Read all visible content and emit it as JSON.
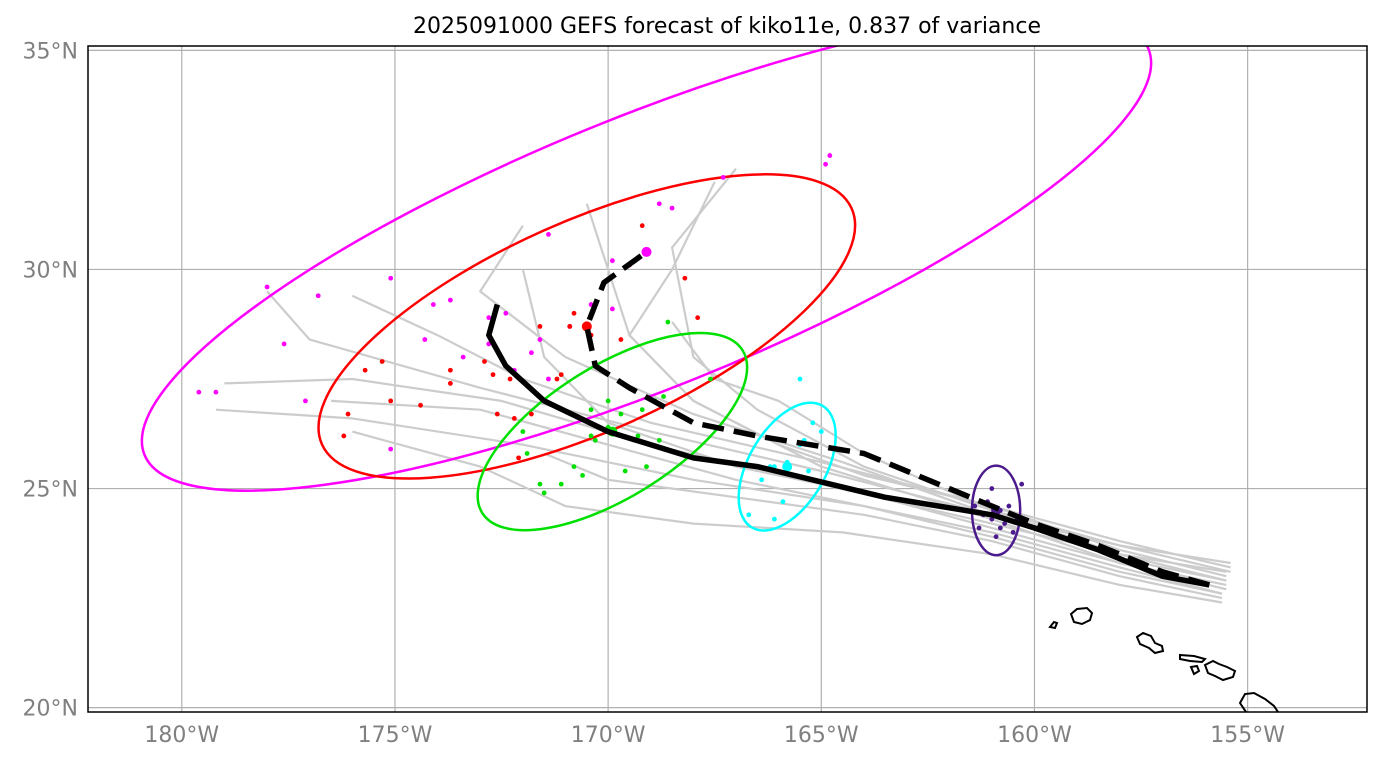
{
  "map": {
    "title": "2025091000 GEFS forecast of kiko11e, 0.837 of variance",
    "lon_range": [
      -182.2,
      -152.2
    ],
    "lat_range": [
      19.9,
      35.1
    ],
    "x_ticks": [
      {
        "lon": -180,
        "label": "180°W"
      },
      {
        "lon": -175,
        "label": "175°W"
      },
      {
        "lon": -170,
        "label": "170°W"
      },
      {
        "lon": -165,
        "label": "165°W"
      },
      {
        "lon": -160,
        "label": "160°W"
      },
      {
        "lon": -155,
        "label": "155°W"
      }
    ],
    "y_ticks": [
      {
        "lat": 35,
        "label": "35°N"
      },
      {
        "lat": 30,
        "label": "30°N"
      },
      {
        "lat": 25,
        "label": "25°N"
      },
      {
        "lat": 20,
        "label": "20°N"
      }
    ],
    "grid": true,
    "colors": {
      "grid": "#b0b0b0",
      "member_track": "#cccccc",
      "mean_track": "#000000",
      "coast": "#000000",
      "cluster_1": "#ff00ff",
      "cluster_2": "#ff0000",
      "cluster_3": "#00e000",
      "cluster_4": "#00ffff",
      "cluster_5": "#4b1a8c"
    }
  },
  "chart_data": {
    "type": "map",
    "member_tracks": [
      [
        [
          -155.5,
          23.1
        ],
        [
          -158,
          23.5
        ],
        [
          -161,
          24.2
        ],
        [
          -165,
          25.1
        ],
        [
          -169,
          26
        ],
        [
          -172.5,
          27
        ],
        [
          -176,
          27.5
        ],
        [
          -179,
          27.4
        ]
      ],
      [
        [
          -155.5,
          22.9
        ],
        [
          -158,
          23.4
        ],
        [
          -161,
          24.4
        ],
        [
          -165,
          25.4
        ],
        [
          -169,
          26.3
        ],
        [
          -173,
          27.3
        ],
        [
          -177,
          28.4
        ],
        [
          -178,
          29.5
        ]
      ],
      [
        [
          -155.6,
          22.6
        ],
        [
          -158,
          23.2
        ],
        [
          -161,
          24
        ],
        [
          -164,
          24.6
        ],
        [
          -168,
          25.2
        ],
        [
          -172,
          26
        ],
        [
          -176,
          26.6
        ],
        [
          -179.2,
          26.8
        ]
      ],
      [
        [
          -155.4,
          23.3
        ],
        [
          -158,
          23.7
        ],
        [
          -161,
          24.4
        ],
        [
          -164.5,
          25.6
        ],
        [
          -168,
          26.7
        ],
        [
          -171,
          28
        ],
        [
          -173,
          29.5
        ],
        [
          -172,
          31
        ]
      ],
      [
        [
          -155.6,
          22.4
        ],
        [
          -158,
          22.8
        ],
        [
          -161,
          23.5
        ],
        [
          -164.5,
          24
        ],
        [
          -168,
          24.2
        ],
        [
          -171,
          24.6
        ],
        [
          -173,
          25.5
        ],
        [
          -176,
          26.3
        ]
      ],
      [
        [
          -155.5,
          22.7
        ],
        [
          -158,
          23.3
        ],
        [
          -161,
          24.3
        ],
        [
          -165,
          25.5
        ],
        [
          -168,
          27
        ],
        [
          -169.5,
          28.5
        ],
        [
          -170,
          30
        ],
        [
          -170.5,
          31.5
        ]
      ],
      [
        [
          -155.4,
          23.2
        ],
        [
          -158,
          23.8
        ],
        [
          -161,
          24.6
        ],
        [
          -164,
          25.3
        ],
        [
          -166,
          26
        ],
        [
          -168,
          27
        ],
        [
          -169.5,
          28.5
        ],
        [
          -168.5,
          30
        ],
        [
          -167.5,
          32
        ]
      ],
      [
        [
          -155.5,
          22.9
        ],
        [
          -158,
          23.5
        ],
        [
          -161,
          24.5
        ],
        [
          -164,
          25.8
        ],
        [
          -166,
          27
        ],
        [
          -167.5,
          27.5
        ],
        [
          -168.5,
          28.8
        ]
      ],
      [
        [
          -155.5,
          23
        ],
        [
          -158,
          23.6
        ],
        [
          -161,
          24.6
        ],
        [
          -165,
          25.6
        ],
        [
          -169,
          26.5
        ],
        [
          -172,
          27.5
        ],
        [
          -174,
          28.5
        ],
        [
          -176,
          29.4
        ]
      ],
      [
        [
          -155.6,
          22.5
        ],
        [
          -158,
          23
        ],
        [
          -161,
          23.8
        ],
        [
          -164,
          24.4
        ],
        [
          -167,
          24.8
        ],
        [
          -170,
          25.2
        ],
        [
          -171.5,
          25.8
        ]
      ],
      [
        [
          -155.5,
          22.8
        ],
        [
          -158,
          23.3
        ],
        [
          -161,
          24.1
        ],
        [
          -164,
          24.9
        ],
        [
          -167,
          25.5
        ],
        [
          -170,
          26.5
        ],
        [
          -171.5,
          28
        ],
        [
          -172,
          30
        ]
      ],
      [
        [
          -155.4,
          23.1
        ],
        [
          -158,
          23.7
        ],
        [
          -161,
          24.5
        ],
        [
          -164,
          25.5
        ],
        [
          -166.5,
          26.8
        ],
        [
          -168,
          28
        ],
        [
          -168.5,
          30.5
        ],
        [
          -167,
          32.3
        ]
      ],
      [
        [
          -155.6,
          22.6
        ],
        [
          -158,
          23.1
        ],
        [
          -161,
          23.9
        ],
        [
          -164,
          24.6
        ],
        [
          -167,
          25.2
        ],
        [
          -170,
          26
        ],
        [
          -173,
          26.8
        ],
        [
          -176.5,
          27
        ]
      ]
    ],
    "mean_track_solid": [
      [
        -155.9,
        22.8
      ],
      [
        -157,
        23
      ],
      [
        -158.5,
        23.6
      ],
      [
        -160,
        24.1
      ],
      [
        -161,
        24.4
      ],
      [
        -163.5,
        24.8
      ],
      [
        -166.5,
        25.5
      ],
      [
        -168,
        25.7
      ],
      [
        -170,
        26.3
      ],
      [
        -171.5,
        27
      ],
      [
        -172.4,
        27.8
      ],
      [
        -172.8,
        28.5
      ],
      [
        -172.6,
        29.2
      ]
    ],
    "mean_track_dashed": [
      [
        -155.9,
        22.8
      ],
      [
        -157,
        23.1
      ],
      [
        -158.5,
        23.7
      ],
      [
        -160,
        24.2
      ],
      [
        -161.5,
        24.8
      ],
      [
        -164,
        25.8
      ],
      [
        -166.5,
        26.2
      ],
      [
        -168,
        26.5
      ],
      [
        -169.5,
        27.3
      ],
      [
        -170.3,
        27.8
      ],
      [
        -170.5,
        28.7
      ],
      [
        -170.1,
        29.7
      ],
      [
        -169.1,
        30.4
      ]
    ],
    "clusters": [
      {
        "color_key": "cluster_1",
        "center": [
          -169.1,
          30.4
        ],
        "rx": 12.7,
        "ry": 3.1,
        "angle": 22,
        "points": [
          [
            -179.6,
            27.2
          ],
          [
            -179.2,
            27.2
          ],
          [
            -178,
            29.6
          ],
          [
            -177.6,
            28.3
          ],
          [
            -177.1,
            27
          ],
          [
            -176.8,
            29.4
          ],
          [
            -175.1,
            29.8
          ],
          [
            -175.1,
            25.9
          ],
          [
            -174.3,
            28.4
          ],
          [
            -174.1,
            29.2
          ],
          [
            -173.7,
            29.3
          ],
          [
            -173.4,
            28
          ],
          [
            -172.8,
            28.9
          ],
          [
            -172.8,
            28.3
          ],
          [
            -172.4,
            29
          ],
          [
            -172.2,
            27.7
          ],
          [
            -171.8,
            28.1
          ],
          [
            -171.6,
            28.4
          ],
          [
            -171.4,
            27.5
          ],
          [
            -171.4,
            30.8
          ],
          [
            -170.9,
            28.7
          ],
          [
            -170.4,
            29.2
          ],
          [
            -169.9,
            29.1
          ],
          [
            -169.9,
            30.2
          ],
          [
            -168.8,
            31.5
          ],
          [
            -168.5,
            31.4
          ],
          [
            -167.3,
            32.1
          ],
          [
            -164.8,
            32.6
          ],
          [
            -164.9,
            32.4
          ]
        ]
      },
      {
        "color_key": "cluster_2",
        "center": [
          -170.5,
          28.7
        ],
        "rx": 6.8,
        "ry": 2.4,
        "angle": 24,
        "points": [
          [
            -176.2,
            26.2
          ],
          [
            -176.1,
            26.7
          ],
          [
            -175.7,
            27.7
          ],
          [
            -175.3,
            27.9
          ],
          [
            -175.1,
            27
          ],
          [
            -174.4,
            26.9
          ],
          [
            -173.7,
            27.7
          ],
          [
            -173.7,
            27.4
          ],
          [
            -172.9,
            27.9
          ],
          [
            -172.7,
            27.6
          ],
          [
            -172.6,
            26.7
          ],
          [
            -172.3,
            27.5
          ],
          [
            -172.2,
            26.6
          ],
          [
            -172.1,
            25.7
          ],
          [
            -171.8,
            26.7
          ],
          [
            -171.6,
            28.7
          ],
          [
            -171.1,
            27.6
          ],
          [
            -171.2,
            27.5
          ],
          [
            -170.9,
            28.7
          ],
          [
            -170.8,
            29
          ],
          [
            -170.4,
            28.5
          ],
          [
            -169.7,
            28.4
          ],
          [
            -169.5,
            30.1
          ],
          [
            -169.2,
            31
          ],
          [
            -168.2,
            29.8
          ],
          [
            -167.9,
            28.9
          ]
        ]
      },
      {
        "color_key": "cluster_3",
        "center": [
          -169.9,
          26.3
        ],
        "rx": 3.6,
        "ry": 1.5,
        "angle": 32,
        "points": [
          [
            -172,
            26.3
          ],
          [
            -171.9,
            25.8
          ],
          [
            -171.6,
            25.1
          ],
          [
            -171.5,
            24.9
          ],
          [
            -171.1,
            25.1
          ],
          [
            -170.8,
            25.5
          ],
          [
            -170.6,
            25.3
          ],
          [
            -170.4,
            26.8
          ],
          [
            -170.4,
            26.2
          ],
          [
            -170.3,
            26.1
          ],
          [
            -170,
            26.4
          ],
          [
            -170,
            27
          ],
          [
            -169.7,
            26.7
          ],
          [
            -169.6,
            25.4
          ],
          [
            -169.3,
            26.2
          ],
          [
            -169.2,
            26.8
          ],
          [
            -168.9,
            27
          ],
          [
            -168.8,
            26.1
          ],
          [
            -168.7,
            27.1
          ],
          [
            -169.1,
            25.5
          ],
          [
            -168.6,
            28.8
          ],
          [
            -167.6,
            27.5
          ]
        ]
      },
      {
        "color_key": "cluster_4",
        "center": [
          -165.8,
          25.5
        ],
        "rx": 1.65,
        "ry": 0.88,
        "angle": 60,
        "points": [
          [
            -166.7,
            24.4
          ],
          [
            -166.4,
            25.2
          ],
          [
            -166.1,
            24.3
          ],
          [
            -166.2,
            25.5
          ],
          [
            -165.9,
            24.7
          ],
          [
            -165.8,
            25.6
          ],
          [
            -165.6,
            25.3
          ],
          [
            -165.5,
            26
          ],
          [
            -165.4,
            26.1
          ],
          [
            -165.3,
            25.4
          ],
          [
            -165.2,
            26.5
          ],
          [
            -165,
            26.3
          ],
          [
            -165.5,
            27.5
          ],
          [
            -166.1,
            25.5
          ]
        ]
      },
      {
        "color_key": "cluster_5",
        "center": [
          -160.9,
          24.5
        ],
        "rx": 1.05,
        "ry": 0.55,
        "angle": 90,
        "points": [
          [
            -161.4,
            24.6
          ],
          [
            -161.3,
            24.1
          ],
          [
            -161.2,
            24.4
          ],
          [
            -161.1,
            24.7
          ],
          [
            -161,
            24.3
          ],
          [
            -160.9,
            23.9
          ],
          [
            -160.8,
            24.5
          ],
          [
            -160.7,
            24.2
          ],
          [
            -160.6,
            24.6
          ],
          [
            -160.5,
            24
          ],
          [
            -160.4,
            24.3
          ],
          [
            -161,
            25
          ],
          [
            -160.3,
            25.1
          ],
          [
            -160.8,
            24.1
          ]
        ]
      }
    ]
  }
}
